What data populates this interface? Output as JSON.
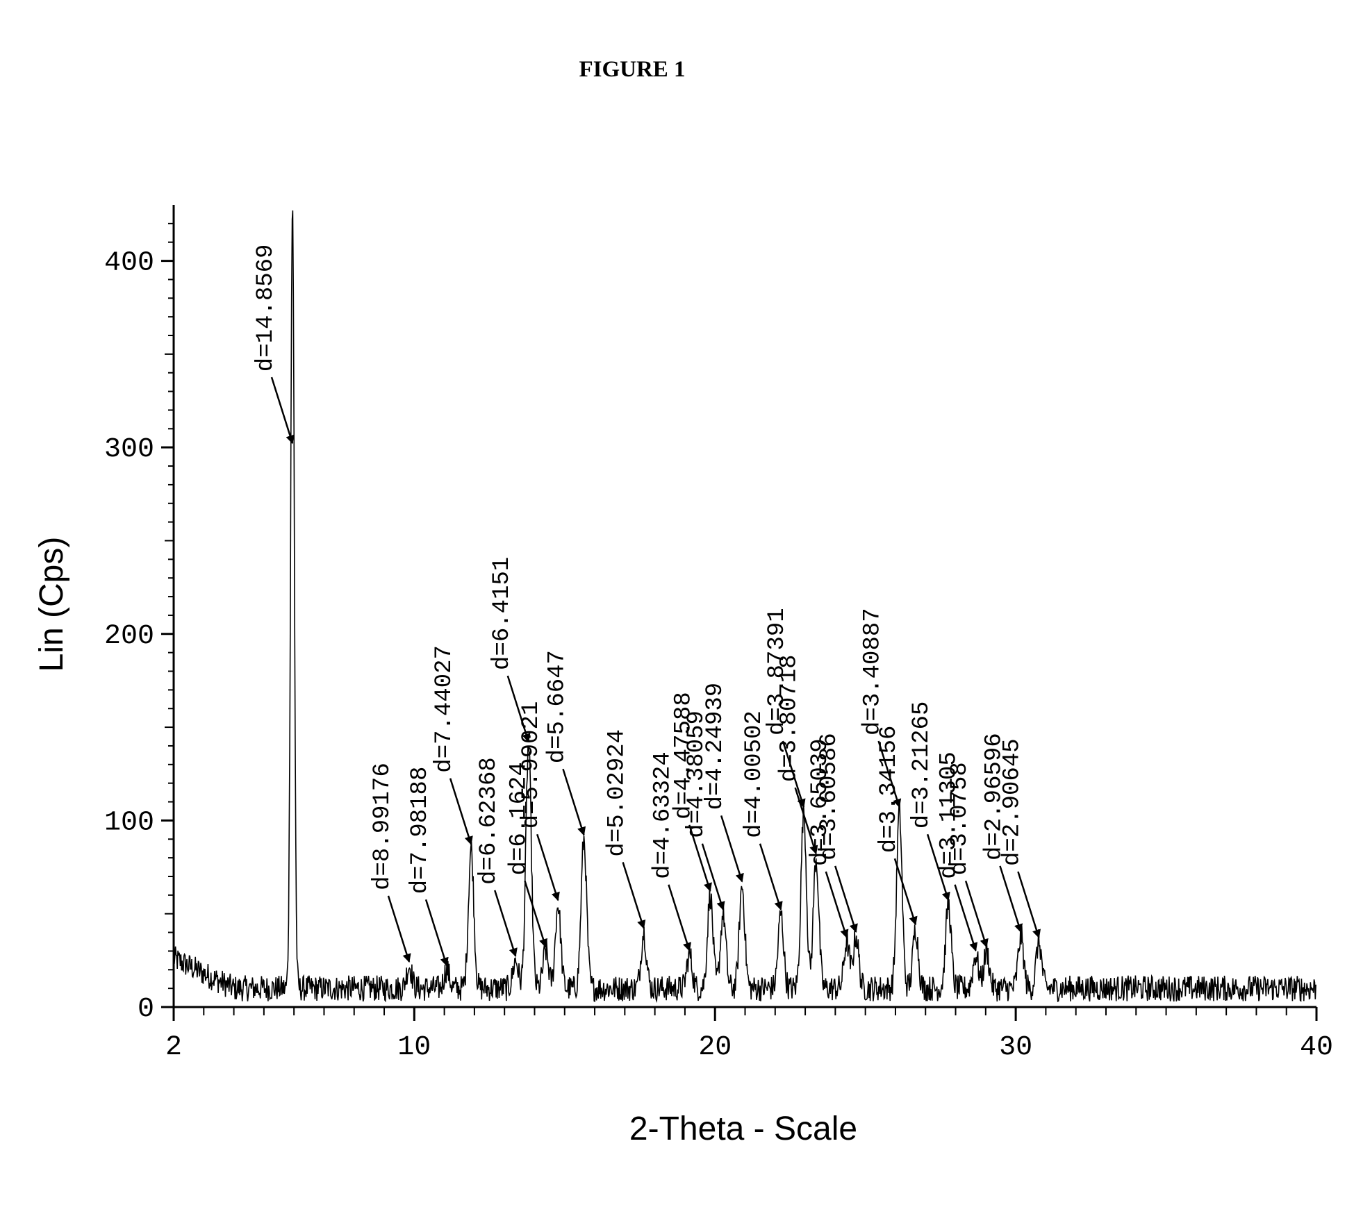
{
  "title": "FIGURE 1",
  "chart_data": {
    "type": "line",
    "title": "FIGURE 1",
    "xlabel": "2-Theta - Scale",
    "ylabel": "Lin (Cps)",
    "xlim": [
      2,
      40
    ],
    "ylim": [
      0,
      430
    ],
    "x_tick_labels": [
      2,
      10,
      20,
      30,
      40
    ],
    "y_tick_labels": [
      0,
      100,
      200,
      300,
      400
    ],
    "grid": false,
    "baseline": 10,
    "peaks": [
      {
        "two_theta": 5.95,
        "intensity": 430,
        "d": "d=14.8569"
      },
      {
        "two_theta": 9.83,
        "intensity": 22,
        "d": "d=8.99176"
      },
      {
        "two_theta": 11.08,
        "intensity": 20,
        "d": "d=7.98188"
      },
      {
        "two_theta": 11.89,
        "intensity": 85,
        "d": "d=7.44027"
      },
      {
        "two_theta": 13.37,
        "intensity": 25,
        "d": "d=6.62368"
      },
      {
        "two_theta": 13.8,
        "intensity": 140,
        "d": "d=6.4151"
      },
      {
        "two_theta": 14.37,
        "intensity": 30,
        "d": "d=6.1624"
      },
      {
        "two_theta": 14.78,
        "intensity": 55,
        "d": "d=5.99021"
      },
      {
        "two_theta": 15.64,
        "intensity": 90,
        "d": "d=5.6647"
      },
      {
        "two_theta": 17.63,
        "intensity": 40,
        "d": "d=5.02924"
      },
      {
        "two_theta": 19.15,
        "intensity": 28,
        "d": "d=4.63324"
      },
      {
        "two_theta": 19.84,
        "intensity": 60,
        "d": "d=4.47588"
      },
      {
        "two_theta": 20.27,
        "intensity": 50,
        "d": "d=4.38059"
      },
      {
        "two_theta": 20.9,
        "intensity": 65,
        "d": "d=4.24939"
      },
      {
        "two_theta": 22.19,
        "intensity": 50,
        "d": "d=4.00502"
      },
      {
        "two_theta": 22.95,
        "intensity": 105,
        "d": "d=3.87391"
      },
      {
        "two_theta": 23.36,
        "intensity": 80,
        "d": "d=3.80718"
      },
      {
        "two_theta": 24.38,
        "intensity": 35,
        "d": "d=3.65039"
      },
      {
        "two_theta": 24.69,
        "intensity": 38,
        "d": "d=3.60586"
      },
      {
        "two_theta": 26.13,
        "intensity": 105,
        "d": "d=3.40887"
      },
      {
        "two_theta": 26.67,
        "intensity": 42,
        "d": "d=3.34156"
      },
      {
        "two_theta": 27.76,
        "intensity": 55,
        "d": "d=3.21265"
      },
      {
        "two_theta": 28.67,
        "intensity": 28,
        "d": "d=3.11305"
      },
      {
        "two_theta": 29.03,
        "intensity": 30,
        "d": "d=3.0758"
      },
      {
        "two_theta": 30.17,
        "intensity": 38,
        "d": "d=2.96596"
      },
      {
        "two_theta": 30.77,
        "intensity": 35,
        "d": "d=2.90645"
      }
    ]
  }
}
